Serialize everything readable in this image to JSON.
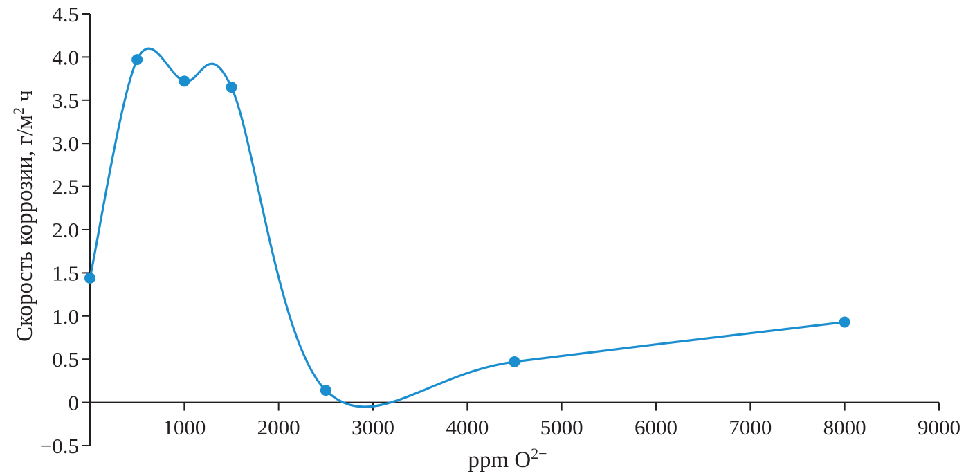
{
  "chart_data": {
    "type": "line",
    "smooth": true,
    "title": "",
    "xlabel": {
      "text": "ppm O",
      "superscript": "2−"
    },
    "ylabel": {
      "text": "Скорость коррозии, г/м",
      "superscript": "2",
      "suffix": " ч"
    },
    "xlim": [
      0,
      9000
    ],
    "ylim": [
      -0.5,
      4.5
    ],
    "x_ticks": [
      1000,
      2000,
      3000,
      4000,
      5000,
      6000,
      7000,
      8000,
      9000
    ],
    "x_tick_labels": [
      "1000",
      "2000",
      "3000",
      "4000",
      "5000",
      "6000",
      "7000",
      "8000",
      "9000"
    ],
    "y_ticks": [
      -0.5,
      0,
      0.5,
      1.0,
      1.5,
      2.0,
      2.5,
      3.0,
      3.5,
      4.0,
      4.5
    ],
    "y_tick_labels": [
      "−0.5",
      "0",
      "0.5",
      "1.0",
      "1.5",
      "2.0",
      "2.5",
      "3.0",
      "3.5",
      "4.0",
      "4.5"
    ],
    "grid": false,
    "legend": "none",
    "series": [
      {
        "x": [
          0,
          500,
          1000,
          1500,
          2500,
          4500,
          8000
        ],
        "y": [
          1.44,
          3.97,
          3.72,
          3.65,
          0.14,
          0.47,
          0.93
        ],
        "color": "#1b8ecf",
        "marker": "circle"
      }
    ]
  }
}
